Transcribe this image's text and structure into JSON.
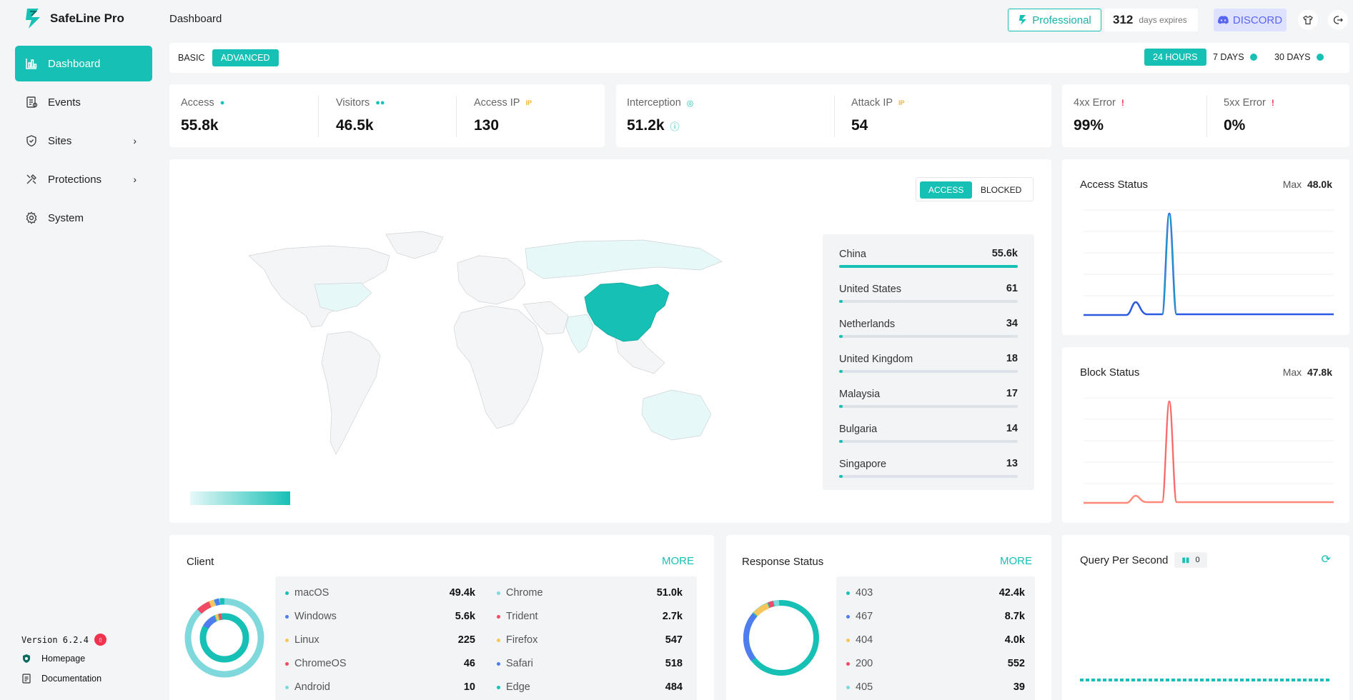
{
  "app": {
    "name": "SafeLine Pro",
    "version": "Version 6.2.4"
  },
  "sidebar": {
    "items": [
      {
        "label": "Dashboard",
        "icon": "chart-bars-icon",
        "active": true
      },
      {
        "label": "Events",
        "icon": "events-icon"
      },
      {
        "label": "Sites",
        "icon": "shield-icon",
        "chevron": true
      },
      {
        "label": "Protections",
        "icon": "tools-icon",
        "chevron": true
      },
      {
        "label": "System",
        "icon": "gear-icon"
      }
    ],
    "footer": {
      "homepage": "Homepage",
      "documentation": "Documentation"
    }
  },
  "header": {
    "title": "Dashboard",
    "plan": "Professional",
    "days_count": "312",
    "days_label": "days expires",
    "discord": "DISCORD"
  },
  "toolbar": {
    "basic": "BASIC",
    "advanced": "ADVANCED",
    "h24": "24 HOURS",
    "d7": "7 DAYS",
    "d30": "30 DAYS"
  },
  "stats": {
    "access": {
      "label": "Access",
      "value": "55.8k"
    },
    "visitors": {
      "label": "Visitors",
      "value": "46.5k"
    },
    "access_ip": {
      "label": "Access IP",
      "value": "130"
    },
    "interception": {
      "label": "Interception",
      "value": "51.2k"
    },
    "attack_ip": {
      "label": "Attack IP",
      "value": "54"
    },
    "err4xx": {
      "label": "4xx Error",
      "value": "99%"
    },
    "err5xx": {
      "label": "5xx Error",
      "value": "0%"
    }
  },
  "map": {
    "toggle_access": "ACCESS",
    "toggle_blocked": "BLOCKED",
    "countries": [
      {
        "name": "China",
        "value": "55.6k",
        "pct": 1.0
      },
      {
        "name": "United States",
        "value": "61",
        "pct": 0.02
      },
      {
        "name": "Netherlands",
        "value": "34",
        "pct": 0.02
      },
      {
        "name": "United Kingdom",
        "value": "18",
        "pct": 0.02
      },
      {
        "name": "Malaysia",
        "value": "17",
        "pct": 0.02
      },
      {
        "name": "Bulgaria",
        "value": "14",
        "pct": 0.02
      },
      {
        "name": "Singapore",
        "value": "13",
        "pct": 0.02
      }
    ]
  },
  "access_status": {
    "title": "Access Status",
    "max_label": "Max",
    "max_value": "48.0k",
    "color": "#2b59e0"
  },
  "block_status": {
    "title": "Block Status",
    "max_label": "Max",
    "max_value": "47.8k",
    "color": "#ff6b6b"
  },
  "client": {
    "title": "Client",
    "more": "MORE",
    "os": [
      {
        "name": "macOS",
        "value": "49.4k",
        "color": "#17c0b5"
      },
      {
        "name": "Windows",
        "value": "5.6k",
        "color": "#4f7df0"
      },
      {
        "name": "Linux",
        "value": "225",
        "color": "#f7c65b"
      },
      {
        "name": "ChromeOS",
        "value": "46",
        "color": "#f04a64"
      },
      {
        "name": "Android",
        "value": "10",
        "color": "#7fd9dc"
      }
    ],
    "browsers": [
      {
        "name": "Chrome",
        "value": "51.0k",
        "color": "#7fd9dc"
      },
      {
        "name": "Trident",
        "value": "2.7k",
        "color": "#f04a64"
      },
      {
        "name": "Firefox",
        "value": "547",
        "color": "#f7c65b"
      },
      {
        "name": "Safari",
        "value": "518",
        "color": "#4f7df0"
      },
      {
        "name": "Edge",
        "value": "484",
        "color": "#17c0b5"
      }
    ]
  },
  "response": {
    "title": "Response Status",
    "more": "MORE",
    "items": [
      {
        "name": "403",
        "value": "42.4k",
        "color": "#17c0b5"
      },
      {
        "name": "467",
        "value": "8.7k",
        "color": "#4f7df0"
      },
      {
        "name": "404",
        "value": "4.0k",
        "color": "#f7c65b"
      },
      {
        "name": "200",
        "value": "552",
        "color": "#f04a64"
      },
      {
        "name": "405",
        "value": "39",
        "color": "#7fd9dc"
      }
    ]
  },
  "qps": {
    "title": "Query Per Second",
    "value": "0"
  }
}
